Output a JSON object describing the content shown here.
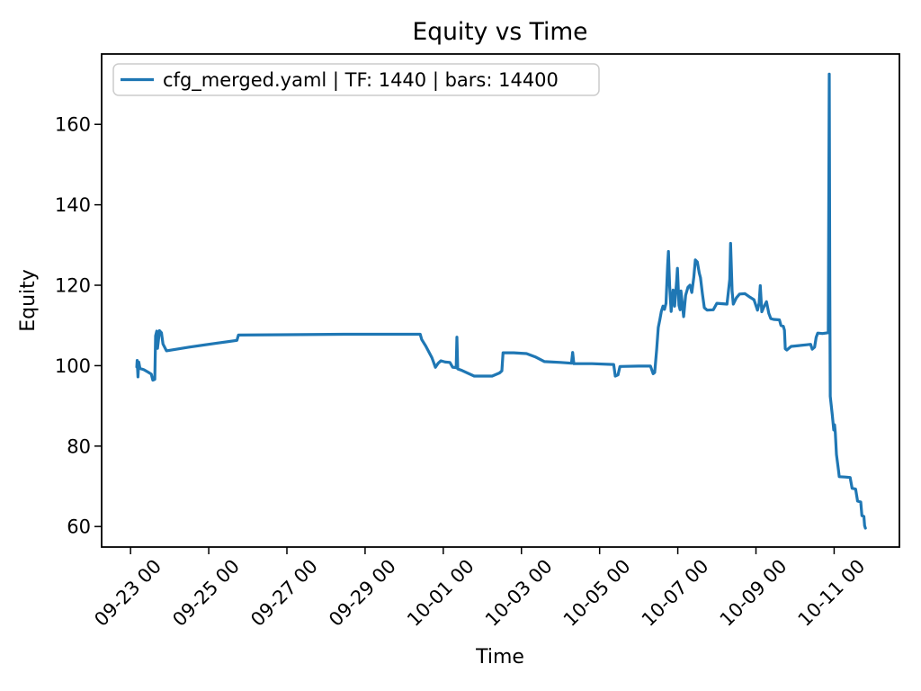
{
  "figure": {
    "title": "Equity vs Time",
    "xlabel": "Time",
    "ylabel": "Equity",
    "background_color": "#ffffff",
    "spine_color": "#000000",
    "legend": {
      "label": "cfg_merged.yaml | TF: 1440 | bars: 14400",
      "border_color": "#cccccc",
      "swatch_color": "#1f77b4"
    }
  },
  "chart_data": {
    "type": "line",
    "title": "Equity vs Time",
    "xlabel": "Time",
    "ylabel": "Equity",
    "grid": false,
    "legend_position": "upper left",
    "x_unit": "days since 09-23 00:00",
    "xlim": [
      -0.74,
      19.67
    ],
    "ylim": [
      54.9,
      177.5
    ],
    "x_ticks": [
      0,
      2,
      4,
      6,
      8,
      10,
      12,
      14,
      16,
      18
    ],
    "x_tick_labels": [
      "09-23 00",
      "09-25 00",
      "09-27 00",
      "09-29 00",
      "10-01 00",
      "10-03 00",
      "10-05 00",
      "10-07 00",
      "10-09 00",
      "10-11 00"
    ],
    "y_ticks": [
      60,
      80,
      100,
      120,
      140,
      160
    ],
    "series": [
      {
        "name": "cfg_merged.yaml | TF: 1440 | bars: 14400",
        "color": "#1f77b4",
        "line_width": 3.2,
        "points": [
          [
            0.16,
            99.7
          ],
          [
            0.17,
            101.3
          ],
          [
            0.19,
            97.2
          ],
          [
            0.21,
            100.9
          ],
          [
            0.24,
            99.3
          ],
          [
            0.34,
            99.0
          ],
          [
            0.45,
            98.4
          ],
          [
            0.53,
            97.9
          ],
          [
            0.57,
            96.4
          ],
          [
            0.62,
            96.6
          ],
          [
            0.64,
            107.4
          ],
          [
            0.67,
            108.6
          ],
          [
            0.69,
            104.3
          ],
          [
            0.71,
            106.0
          ],
          [
            0.74,
            108.7
          ],
          [
            0.79,
            108.2
          ],
          [
            0.83,
            105.4
          ],
          [
            0.92,
            103.7
          ],
          [
            1.5,
            104.6
          ],
          [
            2.2,
            105.6
          ],
          [
            2.72,
            106.3
          ],
          [
            2.76,
            107.6
          ],
          [
            4.0,
            107.7
          ],
          [
            5.5,
            107.8
          ],
          [
            7.41,
            107.8
          ],
          [
            7.45,
            106.5
          ],
          [
            7.55,
            104.9
          ],
          [
            7.71,
            102.0
          ],
          [
            7.8,
            99.6
          ],
          [
            7.87,
            100.6
          ],
          [
            7.94,
            101.2
          ],
          [
            8.05,
            100.9
          ],
          [
            8.17,
            100.8
          ],
          [
            8.24,
            99.6
          ],
          [
            8.33,
            99.5
          ],
          [
            8.35,
            107.1
          ],
          [
            8.37,
            99.2
          ],
          [
            8.48,
            98.8
          ],
          [
            8.79,
            97.4
          ],
          [
            9.25,
            97.4
          ],
          [
            9.44,
            98.2
          ],
          [
            9.5,
            98.7
          ],
          [
            9.53,
            103.2
          ],
          [
            9.8,
            103.2
          ],
          [
            10.13,
            103.0
          ],
          [
            10.35,
            102.2
          ],
          [
            10.59,
            101.0
          ],
          [
            11.0,
            100.8
          ],
          [
            11.28,
            100.6
          ],
          [
            11.31,
            103.3
          ],
          [
            11.34,
            100.5
          ],
          [
            11.8,
            100.5
          ],
          [
            12.36,
            100.3
          ],
          [
            12.4,
            97.4
          ],
          [
            12.47,
            97.7
          ],
          [
            12.52,
            99.8
          ],
          [
            13.0,
            99.9
          ],
          [
            13.3,
            99.9
          ],
          [
            13.37,
            98.0
          ],
          [
            13.41,
            98.3
          ],
          [
            13.46,
            104.0
          ],
          [
            13.5,
            109.5
          ],
          [
            13.54,
            111.4
          ],
          [
            13.58,
            113.5
          ],
          [
            13.62,
            114.8
          ],
          [
            13.66,
            114.0
          ],
          [
            13.7,
            115.5
          ],
          [
            13.74,
            125.0
          ],
          [
            13.76,
            128.4
          ],
          [
            13.79,
            120.0
          ],
          [
            13.83,
            113.5
          ],
          [
            13.88,
            118.8
          ],
          [
            13.92,
            114.8
          ],
          [
            13.97,
            121.0
          ],
          [
            13.99,
            124.2
          ],
          [
            14.03,
            115.0
          ],
          [
            14.06,
            113.9
          ],
          [
            14.08,
            118.6
          ],
          [
            14.12,
            115.0
          ],
          [
            14.15,
            112.2
          ],
          [
            14.2,
            117.5
          ],
          [
            14.26,
            119.5
          ],
          [
            14.31,
            120.0
          ],
          [
            14.36,
            118.2
          ],
          [
            14.41,
            122.0
          ],
          [
            14.45,
            126.3
          ],
          [
            14.5,
            125.8
          ],
          [
            14.55,
            123.0
          ],
          [
            14.58,
            121.9
          ],
          [
            14.63,
            117.8
          ],
          [
            14.68,
            114.4
          ],
          [
            14.75,
            113.8
          ],
          [
            14.91,
            113.9
          ],
          [
            15.0,
            115.5
          ],
          [
            15.15,
            115.4
          ],
          [
            15.26,
            115.3
          ],
          [
            15.33,
            121.5
          ],
          [
            15.35,
            130.4
          ],
          [
            15.39,
            118.5
          ],
          [
            15.42,
            115.3
          ],
          [
            15.5,
            116.9
          ],
          [
            15.58,
            117.8
          ],
          [
            15.72,
            117.9
          ],
          [
            15.85,
            117.0
          ],
          [
            15.95,
            116.4
          ],
          [
            16.04,
            113.8
          ],
          [
            16.08,
            115.5
          ],
          [
            16.11,
            119.9
          ],
          [
            16.15,
            113.4
          ],
          [
            16.22,
            115.0
          ],
          [
            16.27,
            115.9
          ],
          [
            16.33,
            113.0
          ],
          [
            16.38,
            111.7
          ],
          [
            16.45,
            111.5
          ],
          [
            16.6,
            111.4
          ],
          [
            16.64,
            110.0
          ],
          [
            16.7,
            109.8
          ],
          [
            16.73,
            108.8
          ],
          [
            16.75,
            104.2
          ],
          [
            16.79,
            103.9
          ],
          [
            16.9,
            104.8
          ],
          [
            17.1,
            105.0
          ],
          [
            17.3,
            105.2
          ],
          [
            17.4,
            105.3
          ],
          [
            17.44,
            104.1
          ],
          [
            17.5,
            104.6
          ],
          [
            17.54,
            107.0
          ],
          [
            17.58,
            108.1
          ],
          [
            17.7,
            108.0
          ],
          [
            17.85,
            108.2
          ],
          [
            17.875,
            172.5
          ],
          [
            17.89,
            120.0
          ],
          [
            17.9,
            92.4
          ],
          [
            17.95,
            87.9
          ],
          [
            17.99,
            84.0
          ],
          [
            18.01,
            85.3
          ],
          [
            18.03,
            83.4
          ],
          [
            18.06,
            77.9
          ],
          [
            18.11,
            74.1
          ],
          [
            18.13,
            72.4
          ],
          [
            18.28,
            72.3
          ],
          [
            18.41,
            72.2
          ],
          [
            18.46,
            69.5
          ],
          [
            18.55,
            69.3
          ],
          [
            18.6,
            66.3
          ],
          [
            18.68,
            66.1
          ],
          [
            18.71,
            62.7
          ],
          [
            18.76,
            62.5
          ],
          [
            18.78,
            60.2
          ],
          [
            18.8,
            59.6
          ]
        ]
      }
    ]
  }
}
